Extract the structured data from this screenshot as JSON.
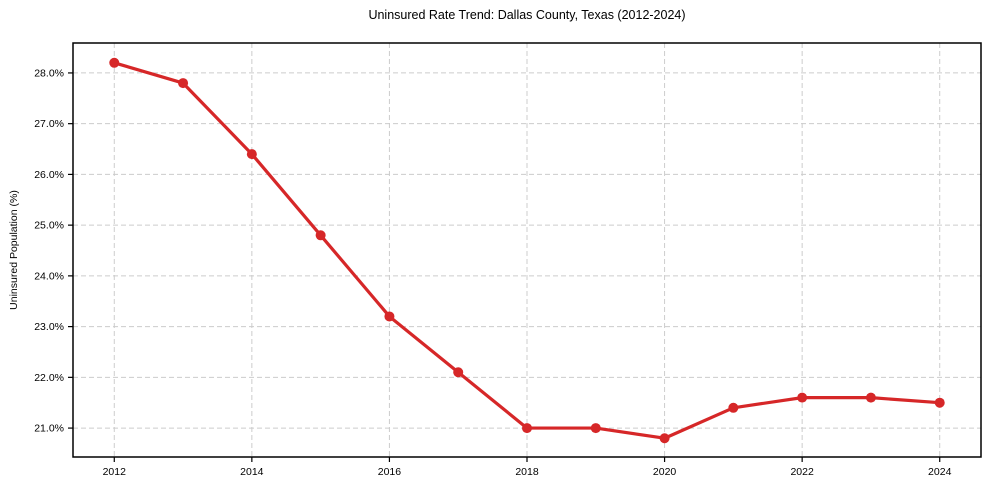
{
  "chart_data": {
    "type": "line",
    "title": "Uninsured Rate Trend: Dallas County, Texas (2012-2024)",
    "xlabel": "",
    "ylabel": "Uninsured Population (%)",
    "x": [
      2012,
      2013,
      2014,
      2015,
      2016,
      2017,
      2018,
      2019,
      2020,
      2021,
      2022,
      2023,
      2024
    ],
    "y": [
      28.2,
      27.8,
      26.4,
      24.8,
      23.2,
      22.1,
      21.0,
      21.0,
      20.8,
      21.4,
      21.6,
      21.6,
      21.5
    ],
    "x_ticks": [
      2012,
      2014,
      2016,
      2018,
      2020,
      2022,
      2024
    ],
    "x_tick_labels": [
      "2012",
      "2014",
      "2016",
      "2018",
      "2020",
      "2022",
      "2024"
    ],
    "y_ticks": [
      21,
      22,
      23,
      24,
      25,
      26,
      27,
      28
    ],
    "y_tick_labels": [
      "21.0%",
      "22.0%",
      "23.0%",
      "24.0%",
      "25.0%",
      "26.0%",
      "27.0%",
      "28.0%"
    ],
    "xlim": [
      2011.4,
      2024.6
    ],
    "ylim": [
      20.43,
      28.59
    ],
    "grid": true,
    "grid_style": "dashed",
    "legend": null,
    "line_color": "#d62728",
    "marker": "o",
    "grid_color": "#cccccc",
    "axis_color": "#000000",
    "background": "#ffffff"
  }
}
